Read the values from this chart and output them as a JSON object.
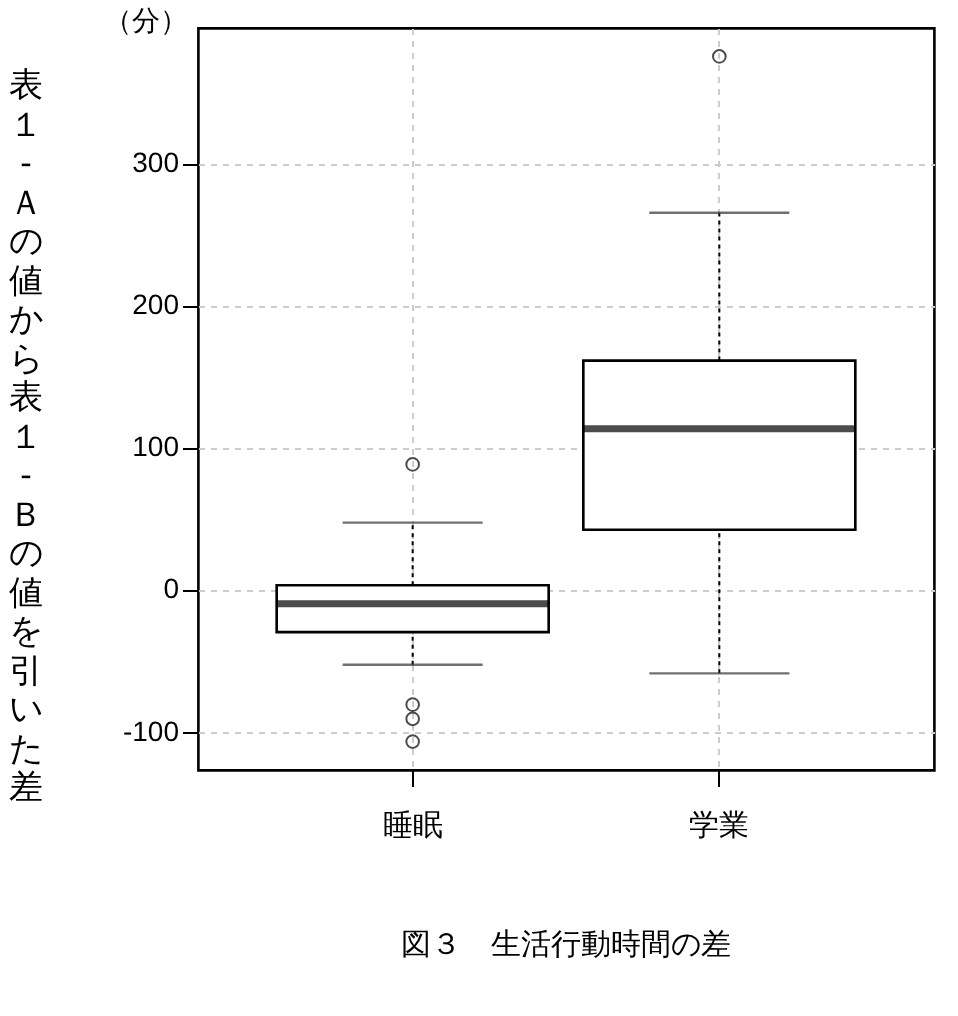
{
  "chart_data": {
    "type": "box",
    "title": "図３　生活行動時間の差",
    "ylabel": "表１-Ａの値から表１-Ｂの値を引いた差",
    "annotations": [
      "（分）"
    ],
    "categories": [
      "睡眠",
      "学業"
    ],
    "boxes": [
      {
        "low": -53,
        "q1": -30,
        "median": -10,
        "q3": 3,
        "high": 47,
        "outliers": [
          88,
          -81,
          -91,
          -107
        ]
      },
      {
        "low": -59,
        "q1": 42,
        "median": 113,
        "q3": 161,
        "high": 265,
        "outliers": [
          375
        ]
      }
    ],
    "ylim": [
      -127,
      395
    ],
    "yticks": [
      -100,
      0,
      100,
      200,
      300
    ],
    "grid": true
  }
}
